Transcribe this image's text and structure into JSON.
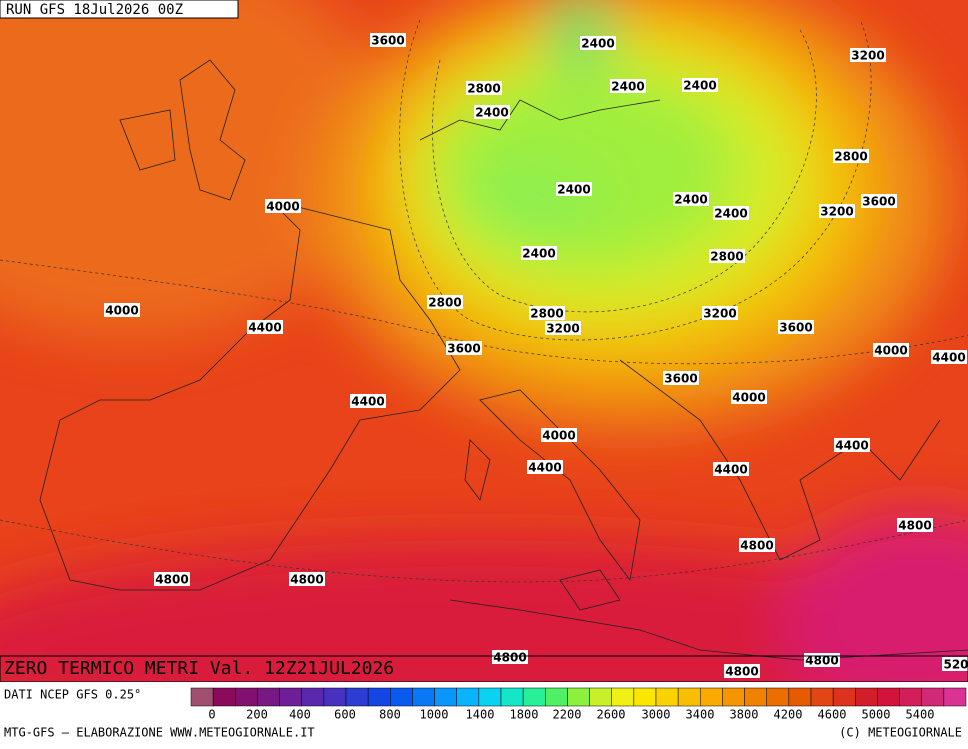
{
  "header": {
    "run": "RUN GFS 18Jul2026 00Z"
  },
  "map": {
    "title": "ZERO TERMICO METRI Val. 12Z21JUL2026",
    "contour_labels": [
      "3600",
      "2400",
      "3200",
      "2800",
      "2400",
      "2400",
      "2400",
      "2800",
      "2400",
      "4000",
      "2400",
      "3600",
      "3200",
      "2400",
      "2400",
      "2800",
      "4000",
      "2800",
      "2800",
      "3200",
      "3200",
      "4400",
      "3600",
      "3600",
      "4000",
      "4400",
      "3600",
      "4000",
      "4400",
      "4000",
      "4400",
      "4400",
      "4400",
      "4800",
      "4800",
      "4800",
      "4800",
      "4800",
      "4800",
      "4800",
      "520"
    ]
  },
  "legend": {
    "source": "DATI NCEP GFS 0.25°",
    "ticks": [
      "0",
      "200",
      "400",
      "600",
      "800",
      "1000",
      "1400",
      "1800",
      "2200",
      "2600",
      "3000",
      "3400",
      "3800",
      "4200",
      "4600",
      "5000",
      "5400"
    ],
    "colors": [
      "#a0506e",
      "#8c0a5a",
      "#82106e",
      "#781882",
      "#6e1e96",
      "#5a28aa",
      "#4632be",
      "#2d3cd2",
      "#1446e6",
      "#0a5af0",
      "#0a78f5",
      "#0a96fa",
      "#0ab4fa",
      "#0ad2f0",
      "#14e6c8",
      "#28f096",
      "#50f064",
      "#8cf03c",
      "#c8f028",
      "#f0f014",
      "#fae600",
      "#fad200",
      "#fabe00",
      "#faaa00",
      "#f59600",
      "#f08200",
      "#eb6e00",
      "#e65a00",
      "#e14614",
      "#dc321e",
      "#d21e28",
      "#d2143c",
      "#d21e5a",
      "#d22878",
      "#dc3296"
    ]
  },
  "footer": {
    "left": "MTG-GFS — ELABORAZIONE WWW.METEOGIORNALE.IT",
    "right": "(C) METEOGIORNALE"
  }
}
